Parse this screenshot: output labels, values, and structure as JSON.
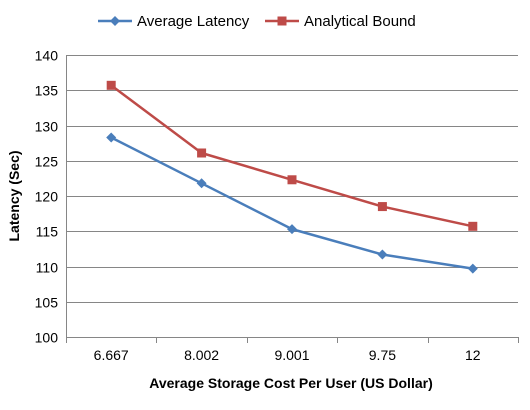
{
  "chart_data": {
    "type": "line",
    "categories": [
      "6.667",
      "8.002",
      "9.001",
      "9.75",
      "12"
    ],
    "series": [
      {
        "name": "Average Latency",
        "values": [
          128.3,
          121.8,
          115.3,
          111.7,
          109.7
        ],
        "color": "#4A7EBB",
        "marker": "diamond"
      },
      {
        "name": "Analytical Bound",
        "values": [
          135.7,
          126.1,
          122.3,
          118.5,
          115.7
        ],
        "color": "#BE4B48",
        "marker": "square"
      }
    ],
    "xlabel": "Average Storage Cost Per User (US Dollar)",
    "ylabel": "Latency (Sec)",
    "ylim": [
      100,
      140
    ],
    "yticks": [
      100,
      105,
      110,
      115,
      120,
      125,
      130,
      135,
      140
    ],
    "grid": "horizontal",
    "legend": "top"
  }
}
